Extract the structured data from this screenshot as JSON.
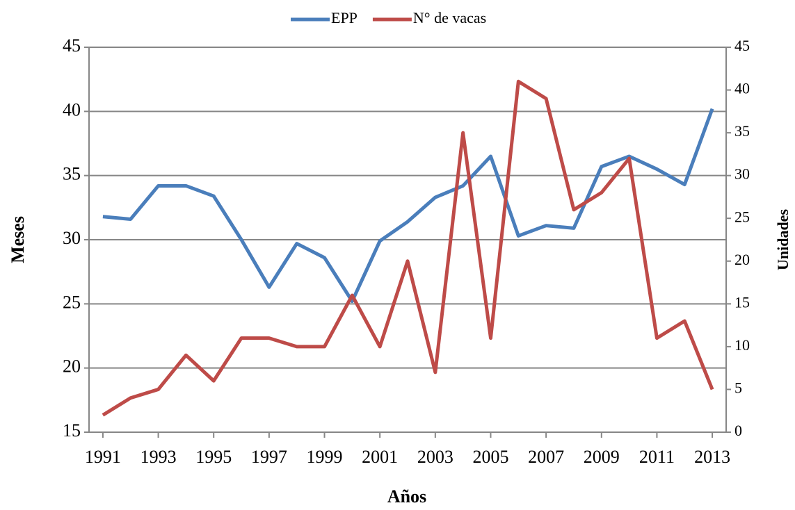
{
  "chart_data": {
    "type": "line",
    "x": [
      1991,
      1992,
      1993,
      1994,
      1995,
      1996,
      1997,
      1998,
      1999,
      2000,
      2001,
      2002,
      2003,
      2004,
      2005,
      2006,
      2007,
      2008,
      2009,
      2010,
      2011,
      2012,
      2013
    ],
    "series": [
      {
        "name": "EPP",
        "color": "#4a7ebb",
        "values": [
          31.8,
          31.6,
          34.2,
          34.2,
          33.4,
          30.0,
          26.3,
          29.7,
          28.6,
          25.2,
          29.9,
          31.4,
          33.3,
          34.2,
          36.5,
          30.3,
          31.1,
          30.9,
          35.7,
          36.5,
          35.5,
          34.3,
          40.2
        ]
      },
      {
        "name": "N° de vacas",
        "color": "#be4b48",
        "axis": "y2",
        "values": [
          2,
          4,
          5,
          9,
          6,
          11,
          11,
          10,
          10,
          16,
          10,
          20,
          7,
          35,
          11,
          41,
          39,
          26,
          28,
          32,
          11,
          13,
          5
        ]
      }
    ],
    "xlim": [
      1990.5,
      2013.5
    ],
    "xticks": [
      1991,
      1993,
      1995,
      1997,
      1999,
      2001,
      2003,
      2005,
      2007,
      2009,
      2011,
      2013
    ],
    "ylim": [
      15,
      45
    ],
    "yticks": [
      15,
      20,
      25,
      30,
      35,
      40,
      45
    ],
    "y2lim": [
      0,
      45
    ],
    "y2ticks": [
      0,
      5,
      10,
      15,
      20,
      25,
      30,
      35,
      40,
      45
    ],
    "xlabel": "Años",
    "ylabel": "Meses",
    "y2label": "Unidades",
    "grid": true,
    "legend": "top"
  }
}
